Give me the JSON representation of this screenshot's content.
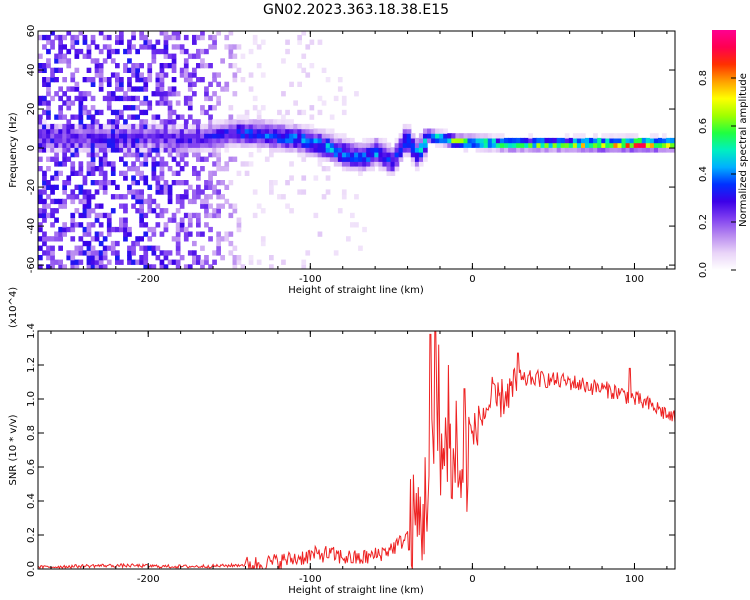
{
  "title": "GN02.2023.363.18.38.E15",
  "chart_data": [
    {
      "type": "heatmap",
      "xlabel": "Height of straight line (km)",
      "ylabel": "Frequency (Hz)",
      "xlim": [
        -268,
        125
      ],
      "ylim": [
        -62,
        60
      ],
      "xticks": [
        -200,
        -100,
        0,
        100
      ],
      "yticks": [
        -60,
        -40,
        -20,
        0,
        20,
        40,
        60
      ],
      "colorbar": {
        "label": "Normalized spectral amplitude",
        "range": [
          0,
          1
        ],
        "ticks": [
          0.0,
          0.2,
          0.4,
          0.6,
          0.8
        ],
        "colormap": [
          "#ffffff",
          "#e9d4f8",
          "#b98bf0",
          "#8040f0",
          "#3c00e8",
          "#0030ff",
          "#00b0ff",
          "#00f0c0",
          "#20ff40",
          "#a0ff00",
          "#ffff00",
          "#ffa000",
          "#ff3000",
          "#ff0050",
          "#ff0090"
        ]
      },
      "ridge": [
        {
          "x": -265,
          "f": 5,
          "amp": 0.22
        },
        {
          "x": -240,
          "f": 4,
          "amp": 0.25
        },
        {
          "x": -220,
          "f": 4,
          "amp": 0.28
        },
        {
          "x": -200,
          "f": 5,
          "amp": 0.24
        },
        {
          "x": -180,
          "f": 3,
          "amp": 0.26
        },
        {
          "x": -160,
          "f": 5,
          "amp": 0.28
        },
        {
          "x": -145,
          "f": 7,
          "amp": 0.33
        },
        {
          "x": -130,
          "f": 6,
          "amp": 0.36
        },
        {
          "x": -110,
          "f": 4,
          "amp": 0.38
        },
        {
          "x": -95,
          "f": 1,
          "amp": 0.4
        },
        {
          "x": -80,
          "f": -4,
          "amp": 0.4
        },
        {
          "x": -70,
          "f": -6,
          "amp": 0.38
        },
        {
          "x": -60,
          "f": -3,
          "amp": 0.4
        },
        {
          "x": -50,
          "f": -8,
          "amp": 0.36
        },
        {
          "x": -42,
          "f": 4,
          "amp": 0.42
        },
        {
          "x": -35,
          "f": -4,
          "amp": 0.4
        },
        {
          "x": -28,
          "f": 5,
          "amp": 0.48
        },
        {
          "x": -20,
          "f": 4,
          "amp": 0.55
        },
        {
          "x": -10,
          "f": 2,
          "amp": 0.62
        },
        {
          "x": 0,
          "f": 2,
          "amp": 0.58
        },
        {
          "x": 20,
          "f": 1,
          "amp": 0.55
        },
        {
          "x": 40,
          "f": 1,
          "amp": 0.58
        },
        {
          "x": 60,
          "f": 1,
          "amp": 0.62
        },
        {
          "x": 80,
          "f": 1,
          "amp": 0.8
        },
        {
          "x": 100,
          "f": 1,
          "amp": 0.88
        },
        {
          "x": 125,
          "f": 1,
          "amp": 0.62
        }
      ],
      "scatter_envelope": [
        {
          "x": -268,
          "amp": 0.22
        },
        {
          "x": -200,
          "amp": 0.22
        },
        {
          "x": -160,
          "amp": 0.16
        },
        {
          "x": -140,
          "amp": 0.05
        },
        {
          "x": -100,
          "amp": 0.06
        },
        {
          "x": -80,
          "amp": 0.04
        },
        {
          "x": -40,
          "amp": 0.01
        },
        {
          "x": 125,
          "amp": 0.0
        }
      ]
    },
    {
      "type": "line",
      "xlabel": "Height of straight line (km)",
      "ylabel": "SNR (10 * v/v)",
      "y_multiplier": "(x10^4)",
      "xlim": [
        -268,
        125
      ],
      "ylim": [
        0,
        1.4
      ],
      "xticks": [
        -200,
        -100,
        0,
        100
      ],
      "yticks": [
        0.0,
        0.2,
        0.4,
        0.6,
        0.8,
        1.0,
        1.2,
        1.4
      ],
      "color": "#ee2222",
      "series": [
        {
          "x": [
            -268,
            -250,
            -230,
            -210,
            -190,
            -170,
            -150,
            -130,
            -110,
            -100,
            -90,
            -80,
            -70,
            -60,
            -50,
            -45,
            -40,
            -35,
            -30,
            -28,
            -25,
            -22,
            -20,
            -18,
            -15,
            -12,
            -10,
            -5,
            0,
            5,
            10,
            15,
            20,
            25,
            30,
            35,
            40,
            50,
            60,
            70,
            80,
            90,
            95,
            100,
            105,
            110,
            115,
            120,
            125
          ],
          "y": [
            0.01,
            0.015,
            0.02,
            0.02,
            0.015,
            0.015,
            0.02,
            0.03,
            0.06,
            0.08,
            0.09,
            0.07,
            0.06,
            0.08,
            0.12,
            0.15,
            0.2,
            0.25,
            0.32,
            0.5,
            0.6,
            0.72,
            0.82,
            0.6,
            0.78,
            0.55,
            0.5,
            0.6,
            0.78,
            0.88,
            0.96,
            0.98,
            1.02,
            1.06,
            1.1,
            1.12,
            1.12,
            1.11,
            1.1,
            1.08,
            1.06,
            1.04,
            1.02,
            1.0,
            0.98,
            0.96,
            0.94,
            0.91,
            0.88
          ],
          "spikes": [
            {
              "x": -26,
              "y": 1.38
            },
            {
              "x": -23,
              "y": 1.4
            },
            {
              "x": -21,
              "y": 1.32
            },
            {
              "x": -15,
              "y": 1.2
            },
            {
              "x": -10,
              "y": 0.99
            },
            {
              "x": -5,
              "y": 1.06
            },
            {
              "x": 12,
              "y": 1.13
            },
            {
              "x": 28,
              "y": 1.27
            },
            {
              "x": 97,
              "y": 1.18
            }
          ]
        }
      ]
    }
  ]
}
